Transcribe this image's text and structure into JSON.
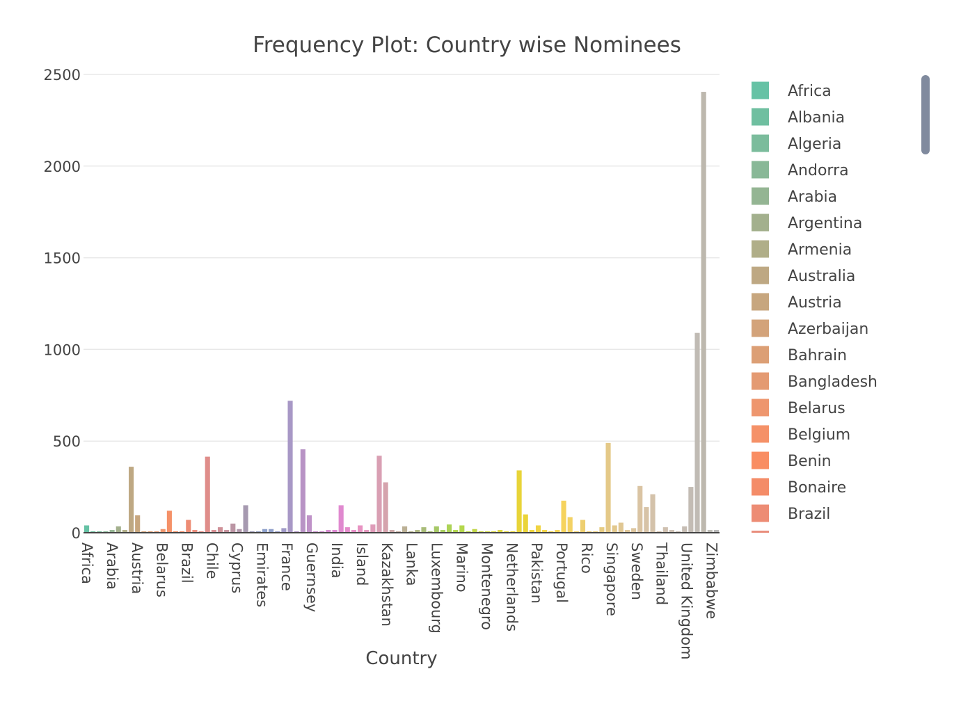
{
  "chart_data": {
    "type": "bar",
    "title": "Frequency Plot: Country wise Nominees",
    "xlabel": "Country",
    "ylabel": "",
    "ylim": [
      0,
      2500
    ],
    "yticks": [
      0,
      500,
      1000,
      1500,
      2000,
      2500
    ],
    "grid": true,
    "legend_position": "right",
    "x_tick_labels": [
      "Africa",
      "Arabia",
      "Austria",
      "Belarus",
      "Brazil",
      "Chile",
      "Cyprus",
      "Emirates",
      "France",
      "Guernsey",
      "India",
      "Island",
      "Kazakhstan",
      "Lanka",
      "Luxembourg",
      "Marino",
      "Montenegro",
      "Netherlands",
      "Pakistan",
      "Portugal",
      "Rico",
      "Singapore",
      "Sweden",
      "Thailand",
      "United Kingdom",
      "Zimbabwe"
    ],
    "legend_entries": [
      "Africa",
      "Albania",
      "Algeria",
      "Andorra",
      "Arabia",
      "Argentina",
      "Armenia",
      "Australia",
      "Austria",
      "Azerbaijan",
      "Bahrain",
      "Bangladesh",
      "Belarus",
      "Belgium",
      "Benin",
      "Bonaire",
      "Brazil"
    ],
    "bars": [
      {
        "name": "Africa",
        "value": 40,
        "color": "#66c2a5"
      },
      {
        "name": "Albania",
        "value": 8,
        "color": "#6fbfa0"
      },
      {
        "name": "Algeria",
        "value": 8,
        "color": "#7bbc9c"
      },
      {
        "name": "Andorra",
        "value": 8,
        "color": "#88b897"
      },
      {
        "name": "Arabia",
        "value": 15,
        "color": "#94b593"
      },
      {
        "name": "Argentina",
        "value": 35,
        "color": "#a3b08d"
      },
      {
        "name": "Armenia",
        "value": 15,
        "color": "#b0ae88"
      },
      {
        "name": "Australia",
        "value": 360,
        "color": "#bea883"
      },
      {
        "name": "Austria",
        "value": 95,
        "color": "#c7a67e"
      },
      {
        "name": "Azerbaijan",
        "value": 8,
        "color": "#d3a37a"
      },
      {
        "name": "Bahrain",
        "value": 8,
        "color": "#dc9f75"
      },
      {
        "name": "Bangladesh",
        "value": 8,
        "color": "#e49a72"
      },
      {
        "name": "Belarus",
        "value": 20,
        "color": "#ee966e"
      },
      {
        "name": "Belgium",
        "value": 120,
        "color": "#f59168"
      },
      {
        "name": "Benin",
        "value": 8,
        "color": "#f98d62"
      },
      {
        "name": "Bonaire",
        "value": 8,
        "color": "#f48c68"
      },
      {
        "name": "Brazil",
        "value": 70,
        "color": "#ed8c74"
      },
      {
        "name": "",
        "value": 15,
        "color": "#e98d7c"
      },
      {
        "name": "",
        "value": 8,
        "color": "#e48d84"
      },
      {
        "name": "",
        "value": 415,
        "color": "#df8d8a"
      },
      {
        "name": "",
        "value": 15,
        "color": "#d68f93"
      },
      {
        "name": "",
        "value": 30,
        "color": "#cf9198"
      },
      {
        "name": "",
        "value": 15,
        "color": "#c5939e"
      },
      {
        "name": "",
        "value": 50,
        "color": "#bb95a4"
      },
      {
        "name": "",
        "value": 20,
        "color": "#b197ab"
      },
      {
        "name": "",
        "value": 150,
        "color": "#a699b0"
      },
      {
        "name": "",
        "value": 8,
        "color": "#9c9bb6"
      },
      {
        "name": "",
        "value": 8,
        "color": "#929dbd"
      },
      {
        "name": "",
        "value": 20,
        "color": "#8da0cb"
      },
      {
        "name": "",
        "value": 20,
        "color": "#8f9fca"
      },
      {
        "name": "",
        "value": 8,
        "color": "#979dc8"
      },
      {
        "name": "",
        "value": 25,
        "color": "#a09ac7"
      },
      {
        "name": "",
        "value": 720,
        "color": "#a898c6"
      },
      {
        "name": "",
        "value": 8,
        "color": "#b095c5"
      },
      {
        "name": "",
        "value": 455,
        "color": "#b893c5"
      },
      {
        "name": "",
        "value": 95,
        "color": "#bf92c8"
      },
      {
        "name": "",
        "value": 8,
        "color": "#c68fcb"
      },
      {
        "name": "",
        "value": 8,
        "color": "#cd8dcd"
      },
      {
        "name": "",
        "value": 15,
        "color": "#d48bcf"
      },
      {
        "name": "",
        "value": 15,
        "color": "#db88d1"
      },
      {
        "name": "",
        "value": 150,
        "color": "#e089cf"
      },
      {
        "name": "",
        "value": 30,
        "color": "#e48ccb"
      },
      {
        "name": "",
        "value": 15,
        "color": "#e68fc7"
      },
      {
        "name": "",
        "value": 40,
        "color": "#e893c2"
      },
      {
        "name": "",
        "value": 15,
        "color": "#e397bd"
      },
      {
        "name": "",
        "value": 45,
        "color": "#de9bb8"
      },
      {
        "name": "",
        "value": 420,
        "color": "#d99fb3"
      },
      {
        "name": "",
        "value": 275,
        "color": "#d5a3ad"
      },
      {
        "name": "",
        "value": 15,
        "color": "#cba7a6"
      },
      {
        "name": "",
        "value": 8,
        "color": "#c2ab9f"
      },
      {
        "name": "",
        "value": 35,
        "color": "#bbb095"
      },
      {
        "name": "",
        "value": 8,
        "color": "#b5b48c"
      },
      {
        "name": "",
        "value": 15,
        "color": "#afb883"
      },
      {
        "name": "",
        "value": 30,
        "color": "#a9bc79"
      },
      {
        "name": "",
        "value": 8,
        "color": "#a5c170"
      },
      {
        "name": "",
        "value": 35,
        "color": "#a6c866"
      },
      {
        "name": "",
        "value": 15,
        "color": "#a8ce5e"
      },
      {
        "name": "",
        "value": 45,
        "color": "#acd356"
      },
      {
        "name": "",
        "value": 15,
        "color": "#b0d54e"
      },
      {
        "name": "",
        "value": 40,
        "color": "#b4d74c"
      },
      {
        "name": "",
        "value": 8,
        "color": "#bad64a"
      },
      {
        "name": "",
        "value": 20,
        "color": "#c1d648"
      },
      {
        "name": "",
        "value": 8,
        "color": "#c9d646"
      },
      {
        "name": "",
        "value": 8,
        "color": "#d0d744"
      },
      {
        "name": "",
        "value": 8,
        "color": "#d7d742"
      },
      {
        "name": "",
        "value": 15,
        "color": "#ddd740"
      },
      {
        "name": "",
        "value": 8,
        "color": "#e2d63d"
      },
      {
        "name": "",
        "value": 8,
        "color": "#e6d53a"
      },
      {
        "name": "",
        "value": 340,
        "color": "#e8d438"
      },
      {
        "name": "",
        "value": 100,
        "color": "#ead438"
      },
      {
        "name": "",
        "value": 15,
        "color": "#edd43d"
      },
      {
        "name": "",
        "value": 40,
        "color": "#f0d443"
      },
      {
        "name": "",
        "value": 15,
        "color": "#f2d449"
      },
      {
        "name": "",
        "value": 8,
        "color": "#f5d44f"
      },
      {
        "name": "",
        "value": 15,
        "color": "#f7d456"
      },
      {
        "name": "",
        "value": 175,
        "color": "#f6d35d"
      },
      {
        "name": "",
        "value": 85,
        "color": "#f3d264"
      },
      {
        "name": "",
        "value": 8,
        "color": "#f1d06a"
      },
      {
        "name": "",
        "value": 70,
        "color": "#eecf70"
      },
      {
        "name": "",
        "value": 8,
        "color": "#ebcd76"
      },
      {
        "name": "",
        "value": 8,
        "color": "#e8cc7c"
      },
      {
        "name": "",
        "value": 30,
        "color": "#e6cb82"
      },
      {
        "name": "",
        "value": 490,
        "color": "#e4c988"
      },
      {
        "name": "",
        "value": 40,
        "color": "#e2c88d"
      },
      {
        "name": "",
        "value": 55,
        "color": "#e0c793"
      },
      {
        "name": "",
        "value": 15,
        "color": "#dec699"
      },
      {
        "name": "",
        "value": 25,
        "color": "#dcc59e"
      },
      {
        "name": "",
        "value": 255,
        "color": "#dac4a3"
      },
      {
        "name": "",
        "value": 140,
        "color": "#d7c3a7"
      },
      {
        "name": "",
        "value": 210,
        "color": "#d4c2aa"
      },
      {
        "name": "",
        "value": 8,
        "color": "#d2c1ad"
      },
      {
        "name": "",
        "value": 30,
        "color": "#cfc0b0"
      },
      {
        "name": "",
        "value": 15,
        "color": "#ccbfb2"
      },
      {
        "name": "",
        "value": 8,
        "color": "#c9beb3"
      },
      {
        "name": "",
        "value": 35,
        "color": "#c6bdb4"
      },
      {
        "name": "",
        "value": 250,
        "color": "#c3bcb4"
      },
      {
        "name": "",
        "value": 1090,
        "color": "#c0bbb4"
      },
      {
        "name": "",
        "value": 2405,
        "color": "#bdb8ae"
      },
      {
        "name": "",
        "value": 15,
        "color": "#bcbbb5"
      },
      {
        "name": "",
        "value": 15,
        "color": "#b8b8b8"
      }
    ]
  },
  "legend": {
    "scrollbar_color": "#808a9e"
  }
}
